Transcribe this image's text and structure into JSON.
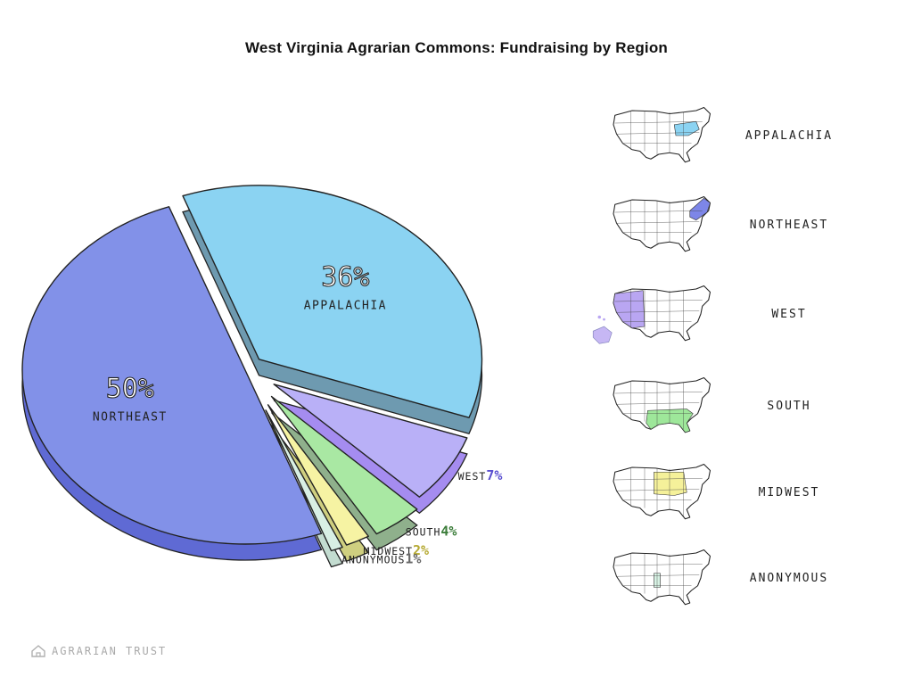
{
  "title": "West Virginia Agrarian Commons: Fundraising by Region",
  "chart_data": {
    "type": "pie",
    "title": "West Virginia Agrarian Commons: Fundraising by Region",
    "categories": [
      "Appalachia",
      "West",
      "South",
      "Midwest",
      "Anonymous",
      "Northeast"
    ],
    "values": [
      36,
      7,
      4,
      2,
      1,
      50
    ],
    "value_labels": [
      "36%",
      "7%",
      "4%",
      "2%",
      "1%",
      "50%"
    ],
    "slice_labels": [
      "APPALACHIA",
      "WEST",
      "SOUTH",
      "MIDWEST",
      "ANONYMOUS",
      "NORTHEAST"
    ],
    "colors": [
      "#8bd3f2",
      "#b9b0f7",
      "#a9e8a3",
      "#f6f3a3",
      "#d8efe4",
      "#8291e8"
    ],
    "side_colors": [
      "#6e9ab0",
      "#a58cf0",
      "#8fb08c",
      "#cfcf80",
      "#c3dcd0",
      "#5f6ad4"
    ],
    "label_colors": [
      "#222222",
      "#5a4fd0",
      "#3c7d3a",
      "#b5a932",
      "#666666",
      "#222222"
    ],
    "exploded": true,
    "style": "3d hand-drawn"
  },
  "legend": [
    {
      "label": "APPALACHIA",
      "map": "us-map-appalachia",
      "color": "#8bd3f2"
    },
    {
      "label": "NORTHEAST",
      "map": "us-map-northeast",
      "color": "#7d86e8"
    },
    {
      "label": "WEST",
      "map": "us-map-west",
      "color": "#b9a6f2"
    },
    {
      "label": "SOUTH",
      "map": "us-map-south",
      "color": "#9ee79a"
    },
    {
      "label": "MIDWEST",
      "map": "us-map-midwest",
      "color": "#f5f19a"
    },
    {
      "label": "ANONYMOUS",
      "map": "us-map-anonymous",
      "color": "#d7f2e4"
    }
  ],
  "footer": {
    "text": "AGRARIAN TRUST",
    "icon": "house-logo-icon"
  }
}
